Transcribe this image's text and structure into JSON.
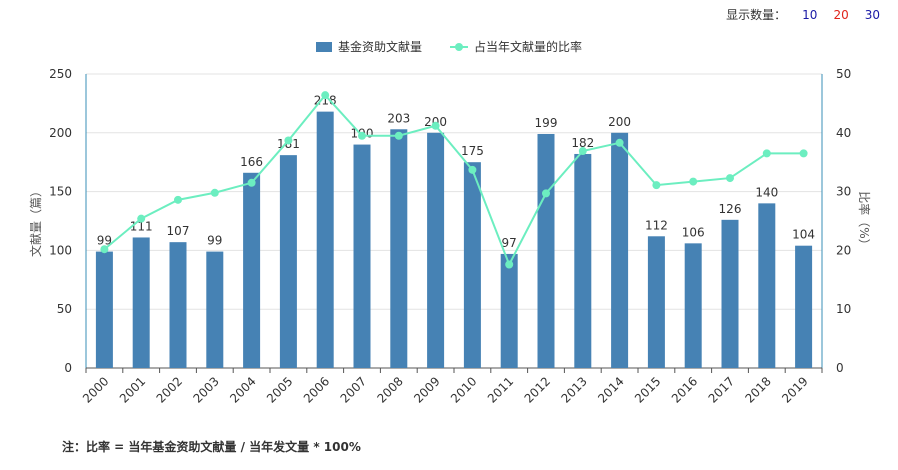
{
  "display_count": {
    "label": "显示数量：",
    "options": [
      {
        "value": "10",
        "color": "#1a1aa6"
      },
      {
        "value": "20",
        "color": "#e0241a"
      },
      {
        "value": "30",
        "color": "#1a1aa6"
      }
    ]
  },
  "colors": {
    "bar": "#4682b4",
    "line": "#6ceec0",
    "axis_right": "#3a8fb7",
    "grid": "#e3e3e3",
    "text": "#333333"
  },
  "chart_data": {
    "type": "bar+line",
    "categories": [
      "2000",
      "2001",
      "2002",
      "2003",
      "2004",
      "2005",
      "2006",
      "2007",
      "2008",
      "2009",
      "2010",
      "2011",
      "2012",
      "2013",
      "2014",
      "2015",
      "2016",
      "2017",
      "2018",
      "2019"
    ],
    "series": [
      {
        "name": "基金资助文献量",
        "type": "bar",
        "axis": "left",
        "values": [
          99,
          111,
          107,
          99,
          166,
          181,
          218,
          190,
          203,
          200,
          175,
          97,
          199,
          182,
          200,
          112,
          106,
          126,
          140,
          104
        ]
      },
      {
        "name": "占当年文献量的比率",
        "type": "line",
        "axis": "right",
        "values": [
          20.2,
          25.4,
          28.6,
          29.8,
          31.5,
          38.7,
          46.4,
          39.5,
          39.5,
          41.2,
          33.7,
          17.6,
          29.7,
          36.9,
          38.3,
          31.1,
          31.7,
          32.3,
          36.5,
          36.5
        ]
      }
    ],
    "ylabel": "文献量（篇）",
    "y2label": "比率（%）",
    "ylim": [
      0,
      250
    ],
    "y2lim": [
      0,
      50
    ],
    "yticks": [
      0,
      50,
      100,
      150,
      200,
      250
    ],
    "y2ticks": [
      0,
      10,
      20,
      30,
      40,
      50
    ],
    "legend_position": "top-center",
    "grid": true
  },
  "footnote": "注：比率 = 当年基金资助文献量 / 当年发文量 * 100%"
}
